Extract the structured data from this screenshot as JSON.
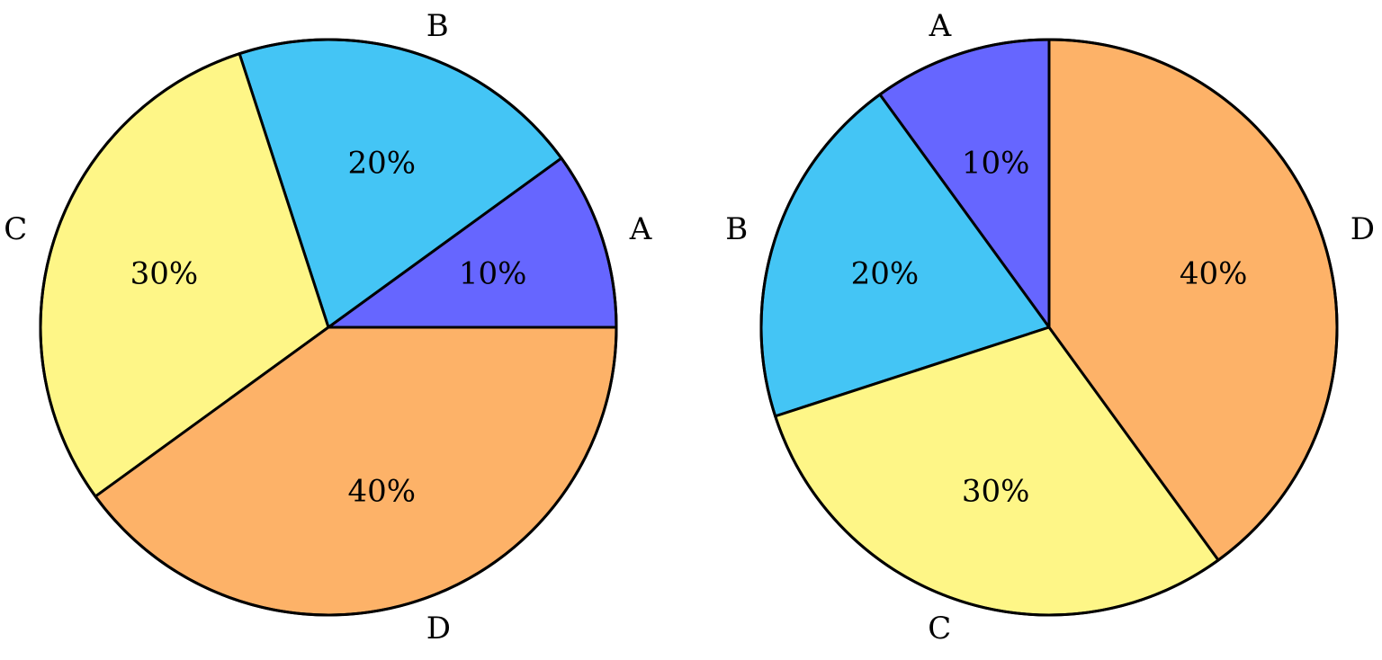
{
  "chart_data": [
    {
      "type": "pie",
      "categories": [
        "A",
        "B",
        "C",
        "D"
      ],
      "values": [
        10,
        20,
        30,
        40
      ],
      "value_labels": [
        "10%",
        "20%",
        "30%",
        "40%"
      ],
      "colors": [
        "#6666ff",
        "#44c5f5",
        "#fef687",
        "#fdb268"
      ],
      "start_angle_deg": 0,
      "direction": "counterclockwise"
    },
    {
      "type": "pie",
      "categories": [
        "A",
        "B",
        "C",
        "D"
      ],
      "values": [
        10,
        20,
        30,
        40
      ],
      "value_labels": [
        "10%",
        "20%",
        "30%",
        "40%"
      ],
      "colors": [
        "#6666ff",
        "#44c5f5",
        "#fef687",
        "#fdb268"
      ],
      "start_angle_deg": 90,
      "direction": "counterclockwise"
    }
  ]
}
